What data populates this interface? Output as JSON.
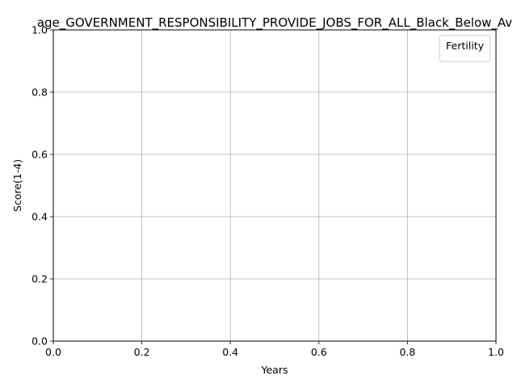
{
  "chart_data": {
    "type": "line",
    "title": "age_GOVERNMENT_RESPONSIBILITY_PROVIDE_JOBS_FOR_ALL_Black_Below_Av",
    "xlabel": "Years",
    "ylabel": "Score(1-4)",
    "xlim": [
      0,
      1
    ],
    "ylim": [
      0,
      1
    ],
    "x_ticks": [
      "0.0",
      "0.2",
      "0.4",
      "0.6",
      "0.8",
      "1.0"
    ],
    "y_ticks": [
      "0.0",
      "0.2",
      "0.4",
      "0.6",
      "0.8",
      "1.0"
    ],
    "grid": true,
    "legend": {
      "title": "Fertility",
      "placement": "top-right",
      "entries": []
    },
    "series": []
  }
}
